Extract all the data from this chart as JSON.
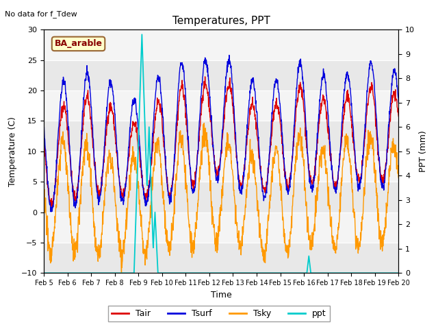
{
  "title": "Temperatures, PPT",
  "no_data_text": "No data for f_Tdew",
  "location_label": "BA_arable",
  "xlabel": "Time",
  "ylabel_left": "Temperature (C)",
  "ylabel_right": "PPT (mm)",
  "ylim_left": [
    -10,
    30
  ],
  "ylim_right": [
    0.0,
    10.0
  ],
  "x_tick_labels": [
    "Feb 5",
    "Feb 6",
    "Feb 7",
    "Feb 8",
    "Feb 9",
    "Feb 10",
    "Feb 11",
    "Feb 12",
    "Feb 13",
    "Feb 14",
    "Feb 15",
    "Feb 16",
    "Feb 17",
    "Feb 18",
    "Feb 19",
    "Feb 20"
  ],
  "colors": {
    "Tair": "#dd0000",
    "Tsurf": "#0000dd",
    "Tsky": "#ff9900",
    "ppt": "#00cccc"
  },
  "band_colors": [
    "#e8e8e8",
    "#f4f4f4"
  ],
  "band_edges": [
    -10,
    -5,
    0,
    5,
    10,
    15,
    20,
    25,
    30
  ],
  "yticks_left": [
    -10,
    -5,
    0,
    5,
    10,
    15,
    20,
    25,
    30
  ],
  "yticks_right": [
    0.0,
    1.0,
    2.0,
    3.0,
    4.0,
    5.0,
    6.0,
    7.0,
    8.0,
    9.0,
    10.0
  ]
}
